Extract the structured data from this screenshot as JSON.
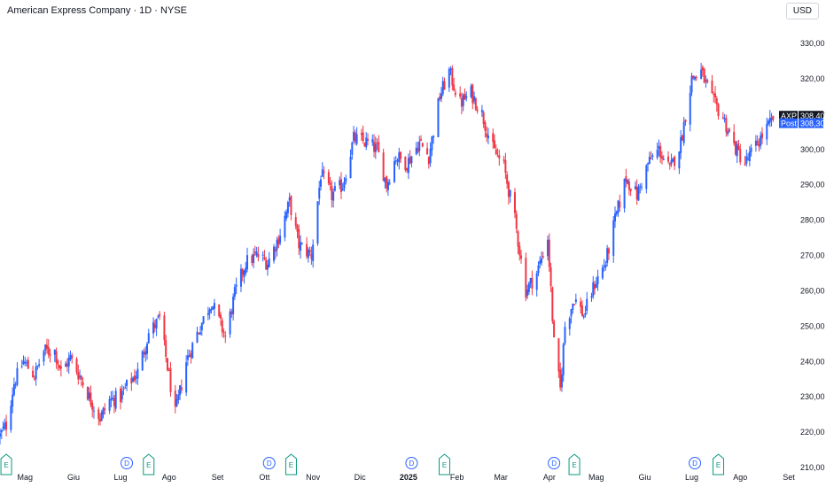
{
  "header": {
    "title": "American Express Company · 1D · NYSE",
    "currency_button": "USD"
  },
  "colors": {
    "up": "#2962ff",
    "down": "#f23645",
    "axis_text": "#131722",
    "earnings": "#089981",
    "dividend": "#2962ff",
    "last_price_tag": "#131722",
    "post_tag": "#2962ff"
  },
  "price_tags": {
    "last": {
      "symbol": "AXP",
      "value": "308,40"
    },
    "post": {
      "label": "Post",
      "value": "308,30"
    }
  },
  "events": [
    {
      "type": "earnings",
      "label": "E",
      "date": "2024-04-19"
    },
    {
      "type": "dividend",
      "label": "D",
      "date": "2024-07-05"
    },
    {
      "type": "earnings",
      "label": "E",
      "date": "2024-07-19"
    },
    {
      "type": "dividend",
      "label": "D",
      "date": "2024-10-04"
    },
    {
      "type": "earnings",
      "label": "E",
      "date": "2024-10-18"
    },
    {
      "type": "dividend",
      "label": "D",
      "date": "2025-01-03"
    },
    {
      "type": "earnings",
      "label": "E",
      "date": "2025-01-24"
    },
    {
      "type": "dividend",
      "label": "D",
      "date": "2025-04-04"
    },
    {
      "type": "earnings",
      "label": "E",
      "date": "2025-04-17"
    },
    {
      "type": "dividend",
      "label": "D",
      "date": "2025-07-03"
    },
    {
      "type": "earnings",
      "label": "E",
      "date": "2025-07-18"
    }
  ],
  "chart_data": {
    "type": "candlestick",
    "title": "American Express Company · 1D · NYSE",
    "x_start": "2024-04-15",
    "x_end": "2025-09-01",
    "ylim": [
      210,
      333
    ],
    "y_ticks": [
      "210,00",
      "220,00",
      "230,00",
      "240,00",
      "250,00",
      "260,00",
      "270,00",
      "280,00",
      "290,00",
      "300,00",
      "310,00",
      "320,00",
      "330,00"
    ],
    "x_ticks": [
      {
        "label": "Mag",
        "date": "2024-05-01"
      },
      {
        "label": "Giu",
        "date": "2024-06-01"
      },
      {
        "label": "Lug",
        "date": "2024-07-01"
      },
      {
        "label": "Ago",
        "date": "2024-08-01"
      },
      {
        "label": "Set",
        "date": "2024-09-01"
      },
      {
        "label": "Ott",
        "date": "2024-10-01"
      },
      {
        "label": "Nov",
        "date": "2024-11-01"
      },
      {
        "label": "Dic",
        "date": "2024-12-01"
      },
      {
        "label": "2025",
        "date": "2025-01-01",
        "bold": true
      },
      {
        "label": "Feb",
        "date": "2025-02-01"
      },
      {
        "label": "Mar",
        "date": "2025-03-01"
      },
      {
        "label": "Apr",
        "date": "2025-04-01"
      },
      {
        "label": "Mag",
        "date": "2025-05-01"
      },
      {
        "label": "Giu",
        "date": "2025-06-01"
      },
      {
        "label": "Lug",
        "date": "2025-07-01"
      },
      {
        "label": "Ago",
        "date": "2025-08-01"
      },
      {
        "label": "Set",
        "date": "2025-09-01"
      }
    ],
    "close_path": [
      [
        "2024-04-15",
        219
      ],
      [
        "2024-04-19",
        222
      ],
      [
        "2024-04-24",
        234
      ],
      [
        "2024-04-30",
        240
      ],
      [
        "2024-05-07",
        236
      ],
      [
        "2024-05-13",
        243
      ],
      [
        "2024-05-20",
        243
      ],
      [
        "2024-05-24",
        237
      ],
      [
        "2024-05-30",
        241
      ],
      [
        "2024-06-06",
        235
      ],
      [
        "2024-06-12",
        229
      ],
      [
        "2024-06-18",
        224
      ],
      [
        "2024-06-24",
        229
      ],
      [
        "2024-07-01",
        230
      ],
      [
        "2024-07-05",
        233
      ],
      [
        "2024-07-12",
        237
      ],
      [
        "2024-07-19",
        248
      ],
      [
        "2024-07-26",
        252
      ],
      [
        "2024-08-05",
        225
      ],
      [
        "2024-08-12",
        240
      ],
      [
        "2024-08-19",
        248
      ],
      [
        "2024-08-28",
        257
      ],
      [
        "2024-09-06",
        247
      ],
      [
        "2024-09-12",
        259
      ],
      [
        "2024-09-19",
        268
      ],
      [
        "2024-09-26",
        270
      ],
      [
        "2024-10-03",
        268
      ],
      [
        "2024-10-10",
        275
      ],
      [
        "2024-10-17",
        285
      ],
      [
        "2024-10-23",
        273
      ],
      [
        "2024-10-31",
        270
      ],
      [
        "2024-11-06",
        293
      ],
      [
        "2024-11-13",
        287
      ],
      [
        "2024-11-20",
        290
      ],
      [
        "2024-11-27",
        303
      ],
      [
        "2024-12-05",
        302
      ],
      [
        "2024-12-12",
        300
      ],
      [
        "2024-12-18",
        290
      ],
      [
        "2024-12-24",
        298
      ],
      [
        "2024-12-31",
        296
      ],
      [
        "2025-01-08",
        302
      ],
      [
        "2025-01-14",
        298
      ],
      [
        "2025-01-21",
        315
      ],
      [
        "2025-01-27",
        322
      ],
      [
        "2025-02-03",
        313
      ],
      [
        "2025-02-10",
        316
      ],
      [
        "2025-02-17",
        310
      ],
      [
        "2025-02-24",
        300
      ],
      [
        "2025-03-03",
        295
      ],
      [
        "2025-03-10",
        280
      ],
      [
        "2025-03-17",
        260
      ],
      [
        "2025-03-24",
        265
      ],
      [
        "2025-03-31",
        275
      ],
      [
        "2025-04-04",
        245
      ],
      [
        "2025-04-08",
        232
      ],
      [
        "2025-04-11",
        250
      ],
      [
        "2025-04-17",
        258
      ],
      [
        "2025-04-23",
        253
      ],
      [
        "2025-04-30",
        262
      ],
      [
        "2025-05-07",
        268
      ],
      [
        "2025-05-13",
        280
      ],
      [
        "2025-05-20",
        292
      ],
      [
        "2025-05-27",
        287
      ],
      [
        "2025-06-03",
        296
      ],
      [
        "2025-06-10",
        300
      ],
      [
        "2025-06-17",
        294
      ],
      [
        "2025-06-24",
        302
      ],
      [
        "2025-07-01",
        320
      ],
      [
        "2025-07-07",
        322
      ],
      [
        "2025-07-14",
        314
      ],
      [
        "2025-07-21",
        309
      ],
      [
        "2025-07-28",
        301
      ],
      [
        "2025-08-04",
        296
      ],
      [
        "2025-08-11",
        301
      ],
      [
        "2025-08-18",
        306
      ],
      [
        "2025-08-22",
        308.4
      ]
    ],
    "last_price": 308.4,
    "post_price": 308.3
  }
}
